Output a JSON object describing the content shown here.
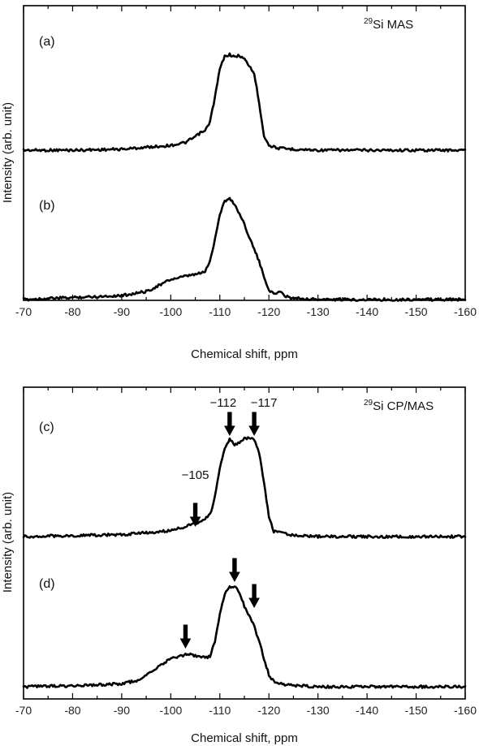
{
  "chart_data": [
    {
      "type": "line",
      "annotation": "MAS",
      "annotation_sup": "29",
      "annotation_element": "Si",
      "xlabel": "Chemical shift, ppm",
      "ylabel": "Intensity (arb. unit)",
      "xlim": [
        -70,
        -160
      ],
      "xticks": [
        "-70",
        "-80",
        "-90",
        "-100",
        "-110",
        "-120",
        "-130",
        "-140",
        "-150",
        "-160"
      ],
      "yticks_shown": false,
      "series": [
        {
          "name": "(a)",
          "x": [
            -70,
            -80,
            -90,
            -95,
            -100,
            -103,
            -105,
            -106,
            -107,
            -108,
            -109,
            -110,
            -111,
            -112,
            -113,
            -114,
            -115,
            -116,
            -117,
            -118,
            -119,
            -120,
            -122,
            -125,
            -130,
            -140,
            -150,
            -160
          ],
          "y": [
            0.0,
            0.0,
            0.01,
            0.03,
            0.05,
            0.08,
            0.14,
            0.18,
            0.2,
            0.3,
            0.55,
            0.85,
            0.98,
            1.0,
            0.97,
            0.99,
            0.95,
            0.88,
            0.8,
            0.5,
            0.15,
            0.05,
            0.02,
            0.01,
            0.0,
            0.0,
            0.0,
            0.0
          ]
        },
        {
          "name": "(b)",
          "x": [
            -70,
            -80,
            -90,
            -95,
            -98,
            -100,
            -103,
            -105,
            -106,
            -107,
            -108,
            -109,
            -110,
            -111,
            -112,
            -113,
            -114,
            -115,
            -116,
            -117,
            -118,
            -119,
            -120,
            -121,
            -122,
            -124,
            -130,
            -140,
            -150,
            -160
          ],
          "y": [
            0.0,
            0.02,
            0.04,
            0.08,
            0.15,
            0.2,
            0.23,
            0.25,
            0.26,
            0.28,
            0.38,
            0.6,
            0.85,
            0.98,
            1.0,
            0.95,
            0.85,
            0.75,
            0.62,
            0.5,
            0.38,
            0.22,
            0.1,
            0.05,
            0.08,
            0.02,
            0.0,
            0.0,
            0.0,
            0.0
          ]
        }
      ]
    },
    {
      "type": "line",
      "annotation": "CP/MAS",
      "annotation_sup": "29",
      "annotation_element": "Si",
      "xlabel": "Chemical shift, ppm",
      "ylabel": "Intensity (arb. unit)",
      "xlim": [
        -70,
        -160
      ],
      "xticks": [
        "-70",
        "-80",
        "-90",
        "-100",
        "-110",
        "-120",
        "-130",
        "-140",
        "-150",
        "-160"
      ],
      "yticks_shown": false,
      "arrows": [
        {
          "x": -105,
          "label": "−105",
          "panel": "c"
        },
        {
          "x": -112,
          "label": "−112",
          "panel": "c"
        },
        {
          "x": -117,
          "label": "−117",
          "panel": "c"
        },
        {
          "x": -103,
          "label": "",
          "panel": "d"
        },
        {
          "x": -113,
          "label": "",
          "panel": "d"
        },
        {
          "x": -117,
          "label": "",
          "panel": "d"
        }
      ],
      "series": [
        {
          "name": "(c)",
          "x": [
            -70,
            -80,
            -90,
            -95,
            -100,
            -103,
            -105,
            -106,
            -107,
            -108,
            -109,
            -110,
            -111,
            -112,
            -113,
            -114,
            -115,
            -116,
            -117,
            -118,
            -119,
            -120,
            -121,
            -122,
            -124,
            -130,
            -140,
            -150,
            -160
          ],
          "y": [
            0.0,
            0.01,
            0.02,
            0.04,
            0.06,
            0.1,
            0.13,
            0.16,
            0.18,
            0.22,
            0.4,
            0.7,
            0.9,
            0.98,
            0.93,
            0.95,
            0.99,
            1.0,
            0.97,
            0.85,
            0.55,
            0.2,
            0.05,
            0.06,
            0.02,
            0.0,
            0.0,
            0.0,
            0.0
          ]
        },
        {
          "name": "(d)",
          "x": [
            -70,
            -80,
            -90,
            -93,
            -96,
            -98,
            -100,
            -102,
            -104,
            -106,
            -107,
            -108,
            -109,
            -110,
            -111,
            -112,
            -113,
            -114,
            -115,
            -116,
            -117,
            -118,
            -119,
            -120,
            -121,
            -123,
            -130,
            -140,
            -150,
            -160
          ],
          "y": [
            0.0,
            0.01,
            0.03,
            0.06,
            0.14,
            0.22,
            0.28,
            0.31,
            0.32,
            0.3,
            0.29,
            0.3,
            0.45,
            0.72,
            0.92,
            0.99,
            1.0,
            0.93,
            0.8,
            0.7,
            0.6,
            0.45,
            0.28,
            0.12,
            0.05,
            0.02,
            0.0,
            0.0,
            0.0,
            0.0
          ]
        }
      ]
    }
  ]
}
